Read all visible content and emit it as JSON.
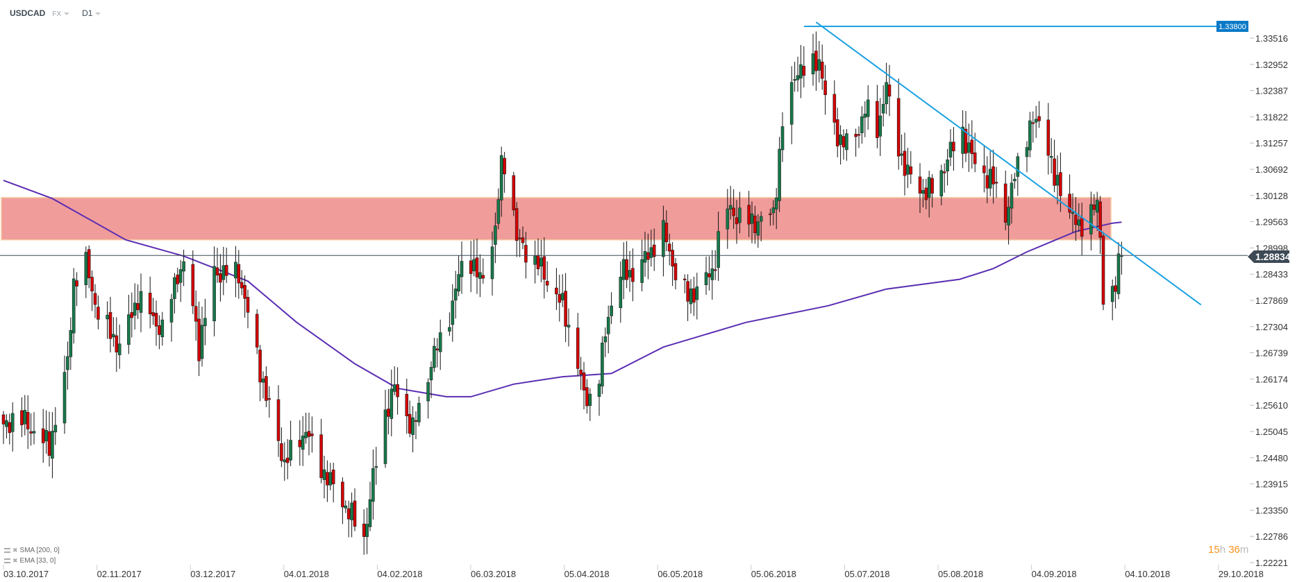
{
  "header": {
    "symbol": "USDCAD",
    "market": "FX",
    "timeframe": "D1"
  },
  "legend": [
    {
      "label": "SMA [200, 0]"
    },
    {
      "label": "EMA [33, 0]"
    }
  ],
  "countdown": {
    "hours": "15",
    "h": "h",
    "minutes": "36",
    "m": "m"
  },
  "colors": {
    "up": "#17794a",
    "down": "#d40000",
    "zone": "#f09c9a",
    "zone_border": "#f5c9a0",
    "trendline": "#1ba1e2",
    "sma": "#5a2db2",
    "price_line": "#3d4a55",
    "label_bg": "#0a7ac7"
  },
  "chart_data": {
    "type": "candlestick",
    "instrument": "USDCAD",
    "y_ticks": [
      "1.33516",
      "1.32952",
      "1.32387",
      "1.31822",
      "1.31257",
      "1.30692",
      "1.30128",
      "1.29563",
      "1.28998",
      "1.28433",
      "1.27869",
      "1.27304",
      "1.26739",
      "1.26174",
      "1.25610",
      "1.25045",
      "1.24480",
      "1.23915",
      "1.23350",
      "1.22786",
      "1.22221"
    ],
    "x_ticks": [
      "03.10.2017",
      "02.11.2017",
      "03.12.2017",
      "04.01.2018",
      "04.02.2018",
      "06.03.2018",
      "05.04.2018",
      "06.05.2018",
      "05.06.2018",
      "05.07.2018",
      "05.08.2018",
      "04.09.2018",
      "04.10.2018",
      "29.10.2018"
    ],
    "ylim": [
      1.22221,
      1.3408
    ],
    "last_price": "1.28834",
    "horizontal_level": "1.33800",
    "close_path": [
      [
        "2017-10-03",
        1.2508
      ],
      [
        "2017-10-07",
        1.2543
      ],
      [
        "2017-10-18",
        1.2472
      ],
      [
        "2017-10-24",
        1.265
      ],
      [
        "2017-10-26",
        1.2828
      ],
      [
        "2017-10-30",
        1.2864
      ],
      [
        "2017-11-03",
        1.2757
      ],
      [
        "2017-11-10",
        1.2686
      ],
      [
        "2017-11-16",
        1.2793
      ],
      [
        "2017-11-24",
        1.2721
      ],
      [
        "2017-11-29",
        1.2846
      ],
      [
        "2017-12-02",
        1.2864
      ],
      [
        "2017-12-06",
        1.2686
      ],
      [
        "2017-12-11",
        1.2846
      ],
      [
        "2017-12-19",
        1.2846
      ],
      [
        "2017-12-22",
        1.2757
      ],
      [
        "2017-12-28",
        1.2579
      ],
      [
        "2018-01-03",
        1.2436
      ],
      [
        "2018-01-10",
        1.2508
      ],
      [
        "2018-01-14",
        1.2436
      ],
      [
        "2018-01-21",
        1.2365
      ],
      [
        "2018-01-29",
        1.2276
      ],
      [
        "2018-02-04",
        1.2525
      ],
      [
        "2018-02-08",
        1.2597
      ],
      [
        "2018-02-14",
        1.2508
      ],
      [
        "2018-02-20",
        1.265
      ],
      [
        "2018-02-27",
        1.2775
      ],
      [
        "2018-03-03",
        1.2899
      ],
      [
        "2018-03-08",
        1.2828
      ],
      [
        "2018-03-13",
        1.2935
      ],
      [
        "2018-03-15",
        1.3078
      ],
      [
        "2018-03-17",
        1.3095
      ],
      [
        "2018-03-20",
        1.2917
      ],
      [
        "2018-03-27",
        1.2864
      ],
      [
        "2018-04-04",
        1.2775
      ],
      [
        "2018-04-08",
        1.2686
      ],
      [
        "2018-04-11",
        1.2579
      ],
      [
        "2018-04-15",
        1.2579
      ],
      [
        "2018-04-19",
        1.2757
      ],
      [
        "2018-04-23",
        1.2846
      ],
      [
        "2018-04-28",
        1.2846
      ],
      [
        "2018-05-07",
        1.2935
      ],
      [
        "2018-05-11",
        1.2846
      ],
      [
        "2018-05-15",
        1.2793
      ],
      [
        "2018-05-23",
        1.2846
      ],
      [
        "2018-05-27",
        1.2989
      ],
      [
        "2018-05-31",
        1.2971
      ],
      [
        "2018-06-05",
        1.2953
      ],
      [
        "2018-06-12",
        1.2971
      ],
      [
        "2018-06-15",
        1.3167
      ],
      [
        "2018-06-18",
        1.3238
      ],
      [
        "2018-06-20",
        1.3291
      ],
      [
        "2018-06-23",
        1.3273
      ],
      [
        "2018-06-27",
        1.3309
      ],
      [
        "2018-06-30",
        1.3184
      ],
      [
        "2018-07-02",
        1.3149
      ],
      [
        "2018-07-08",
        1.3113
      ],
      [
        "2018-07-12",
        1.3202
      ],
      [
        "2018-07-16",
        1.3149
      ],
      [
        "2018-07-19",
        1.3256
      ],
      [
        "2018-07-21",
        1.3149
      ],
      [
        "2018-07-26",
        1.306
      ],
      [
        "2018-07-30",
        1.3024
      ],
      [
        "2018-08-04",
        1.3024
      ],
      [
        "2018-08-08",
        1.3095
      ],
      [
        "2018-08-13",
        1.3149
      ],
      [
        "2018-08-17",
        1.3078
      ],
      [
        "2018-08-23",
        1.3042
      ],
      [
        "2018-08-27",
        1.2971
      ],
      [
        "2018-08-31",
        1.3078
      ],
      [
        "2018-09-04",
        1.3167
      ],
      [
        "2018-09-09",
        1.3167
      ],
      [
        "2018-09-12",
        1.3042
      ],
      [
        "2018-09-16",
        1.3006
      ],
      [
        "2018-09-20",
        1.2935
      ],
      [
        "2018-09-24",
        1.299
      ],
      [
        "2018-09-26",
        1.299
      ],
      [
        "2018-09-27",
        1.291
      ],
      [
        "2018-09-28",
        1.28
      ],
      [
        "2018-10-01",
        1.281
      ],
      [
        "2018-10-02",
        1.282
      ],
      [
        "2018-10-03",
        1.286
      ],
      [
        "2018-10-04",
        1.28834
      ]
    ],
    "sma_200": [
      [
        "2017-10-03",
        1.3045
      ],
      [
        "2017-10-19",
        1.3006
      ],
      [
        "2017-11-12",
        1.2917
      ],
      [
        "2017-12-01",
        1.2882
      ],
      [
        "2017-12-22",
        1.2828
      ],
      [
        "2018-01-07",
        1.2739
      ],
      [
        "2018-01-26",
        1.265
      ],
      [
        "2018-02-09",
        1.2597
      ],
      [
        "2018-02-25",
        1.2579
      ],
      [
        "2018-03-05",
        1.2579
      ],
      [
        "2018-03-19",
        1.2606
      ],
      [
        "2018-04-04",
        1.2622
      ],
      [
        "2018-04-20",
        1.2629
      ],
      [
        "2018-05-07",
        1.2686
      ],
      [
        "2018-06-03",
        1.2739
      ],
      [
        "2018-06-30",
        1.2775
      ],
      [
        "2018-07-19",
        1.2811
      ],
      [
        "2018-08-12",
        1.2832
      ],
      [
        "2018-08-23",
        1.2855
      ],
      [
        "2018-09-03",
        1.2891
      ],
      [
        "2018-09-19",
        1.2935
      ],
      [
        "2018-10-01",
        1.2953
      ],
      [
        "2018-10-04",
        1.2955
      ]
    ],
    "resistance_zone": [
      1.2917,
      1.3008
    ],
    "trendline": [
      [
        "2018-06-26",
        1.3386
      ],
      [
        "2018-10-30",
        1.2777
      ]
    ]
  }
}
